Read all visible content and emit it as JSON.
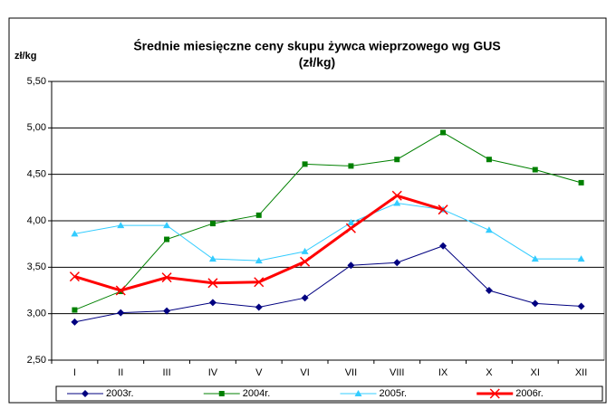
{
  "chart_data": {
    "type": "line",
    "title": [
      "Średnie miesięczne ceny skupu żywca wieprzowego wg GUS",
      "(zł/kg)"
    ],
    "y_label": "zł/kg",
    "categories": [
      "I",
      "II",
      "III",
      "IV",
      "V",
      "VI",
      "VII",
      "VIII",
      "IX",
      "X",
      "XI",
      "XII"
    ],
    "series": [
      {
        "name": "2003r.",
        "color": "#000080",
        "marker": "diamond",
        "values": [
          2.91,
          3.01,
          3.03,
          3.12,
          3.07,
          3.17,
          3.52,
          3.55,
          3.73,
          3.25,
          3.11,
          3.08
        ]
      },
      {
        "name": "2004r.",
        "color": "#008000",
        "marker": "square",
        "values": [
          3.04,
          3.24,
          3.8,
          3.97,
          4.06,
          4.61,
          4.59,
          4.66,
          4.95,
          4.66,
          4.55,
          4.41
        ]
      },
      {
        "name": "2005r.",
        "color": "#33ccff",
        "marker": "triangle",
        "values": [
          3.86,
          3.95,
          3.95,
          3.59,
          3.57,
          3.67,
          3.98,
          4.19,
          4.12,
          3.9,
          3.59,
          3.59
        ]
      },
      {
        "name": "2006r.",
        "color": "#ff0000",
        "marker": "x",
        "values": [
          3.4,
          3.25,
          3.39,
          3.33,
          3.34,
          3.56,
          3.92,
          4.27,
          4.12,
          null,
          null,
          null
        ]
      }
    ],
    "ylim": [
      2.5,
      5.5
    ],
    "yticks": [
      {
        "value": 2.5,
        "label": "2,50"
      },
      {
        "value": 3,
        "label": "3,00"
      },
      {
        "value": 3.5,
        "label": "3,50"
      },
      {
        "value": 4,
        "label": "4,00"
      },
      {
        "value": 4.5,
        "label": "4,50"
      },
      {
        "value": 5,
        "label": "5,00"
      },
      {
        "value": 5.5,
        "label": "5,50"
      }
    ],
    "grid": true,
    "legend": "bottom"
  }
}
